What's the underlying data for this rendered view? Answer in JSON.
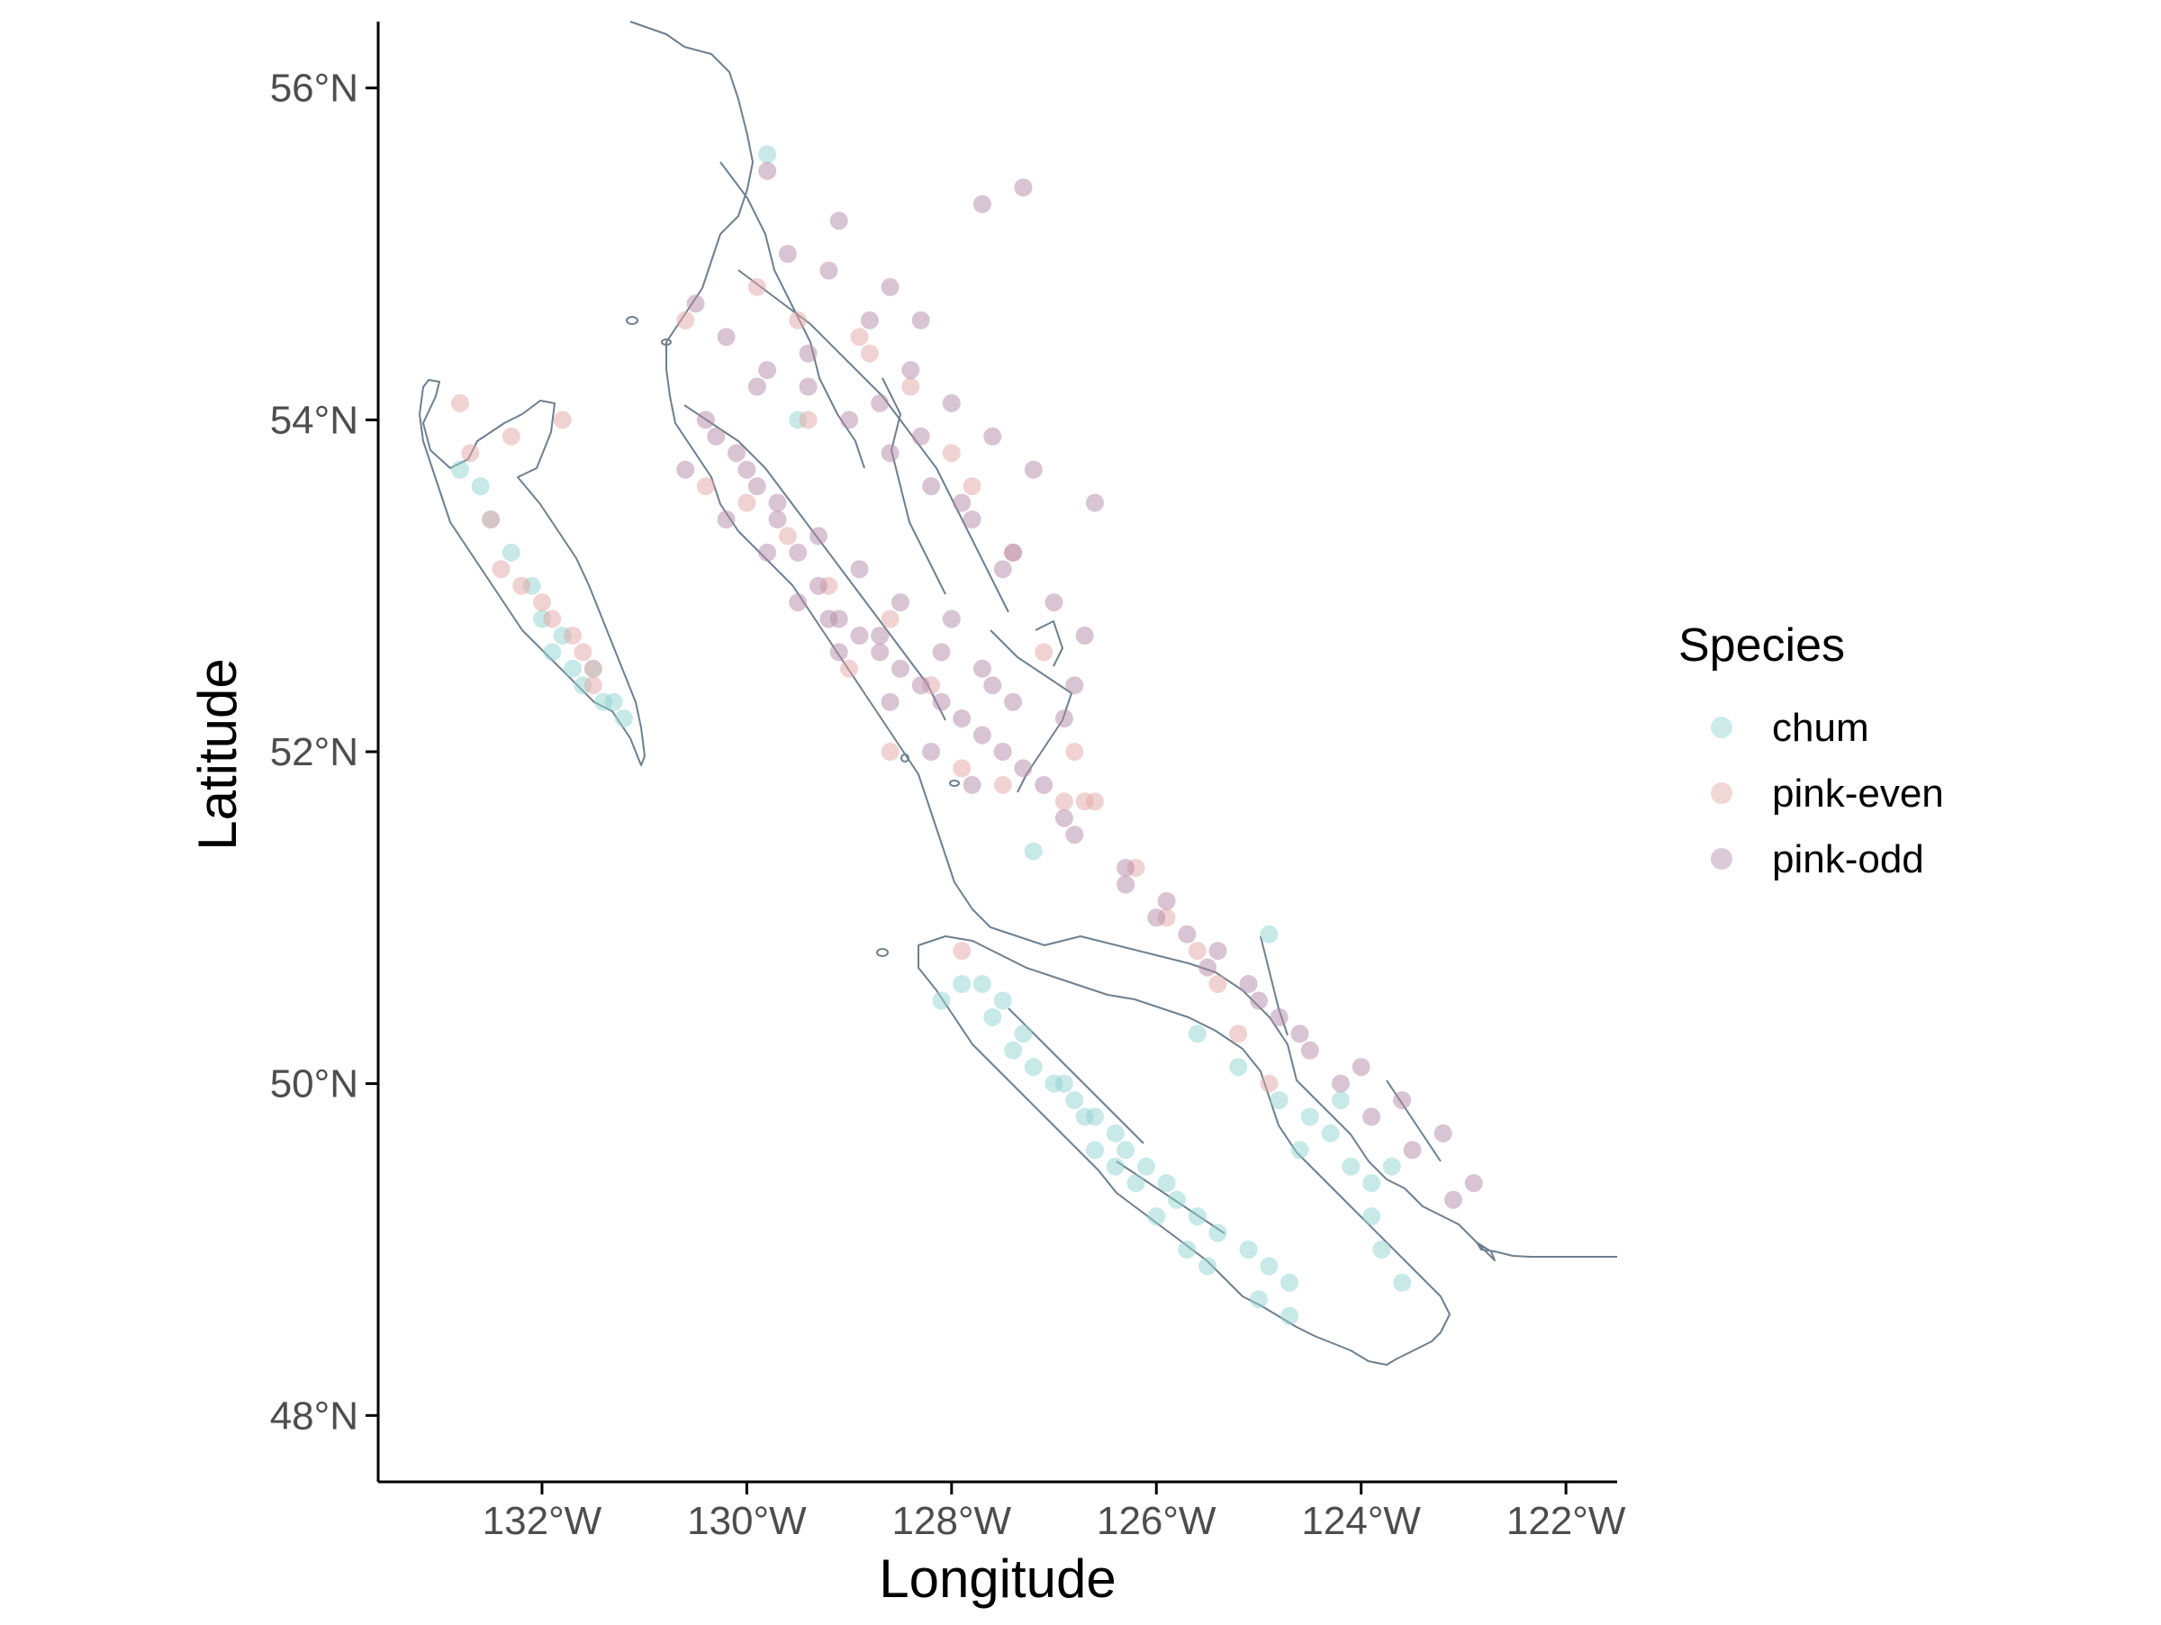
{
  "chart_data": {
    "type": "scatter",
    "title": "",
    "xlabel": "Longitude",
    "ylabel": "Latitude",
    "xlim": [
      -133.6,
      -121.5
    ],
    "ylim": [
      47.6,
      56.4
    ],
    "x_ticks": [
      -132,
      -130,
      -128,
      -126,
      -124,
      -122
    ],
    "x_tick_labels": [
      "132°W",
      "130°W",
      "128°W",
      "126°W",
      "124°W",
      "122°W"
    ],
    "y_ticks": [
      48,
      50,
      52,
      54,
      56
    ],
    "y_tick_labels": [
      "48°N",
      "50°N",
      "52°N",
      "54°N",
      "56°N"
    ],
    "grid": false,
    "legend": {
      "title": "Species",
      "placement": "right",
      "entries": [
        "chum",
        "pink-even",
        "pink-odd"
      ]
    },
    "colors": {
      "chum": "#8fd3d0",
      "pink-even": "#e3a6a6",
      "pink-odd": "#b48aa8",
      "coastline": "#6e7f8f",
      "axis": "#000000"
    },
    "series": [
      {
        "name": "chum",
        "x": [
          -132.8,
          -132.3,
          -132.0,
          -131.8,
          -131.6,
          -131.4,
          -131.2,
          -131.5,
          -129.8,
          -129.5,
          -128.1,
          -127.9,
          -127.6,
          -127.4,
          -127.2,
          -127.0,
          -126.8,
          -126.6,
          -126.4,
          -126.3,
          -126.1,
          -125.9,
          -125.8,
          -125.6,
          -125.4,
          -125.1,
          -124.9,
          -124.7,
          -124.5,
          -124.3,
          -124.1,
          -123.9,
          -123.8,
          -123.6,
          -125.6,
          -125.2,
          -124.8,
          -124.6,
          -123.9,
          -123.7,
          -126.6,
          -126.2,
          -125.0,
          -124.7,
          -127.7,
          -127.5,
          -127.3,
          -126.9,
          -126.7,
          -126.4,
          -126.0,
          -125.7,
          -125.5,
          -124.9,
          -124.2,
          -132.6,
          -132.5,
          -132.1,
          -131.9,
          -131.7,
          -131.3,
          -127.2
        ],
        "y": [
          53.7,
          53.2,
          52.8,
          52.7,
          52.4,
          52.3,
          52.2,
          52.5,
          55.6,
          54.0,
          50.5,
          50.6,
          50.4,
          50.2,
          50.1,
          50.0,
          49.9,
          49.8,
          49.7,
          49.6,
          49.5,
          49.4,
          49.3,
          49.2,
          49.1,
          49.0,
          48.9,
          48.8,
          49.8,
          49.7,
          49.5,
          49.4,
          49.0,
          48.8,
          50.3,
          50.1,
          49.9,
          49.6,
          49.2,
          49.5,
          49.6,
          49.4,
          48.7,
          48.6,
          50.6,
          50.5,
          50.3,
          50.0,
          49.8,
          49.5,
          49.2,
          49.0,
          48.9,
          50.9,
          49.9,
          53.6,
          53.4,
          53.0,
          52.6,
          52.5,
          52.3,
          51.4
        ]
      },
      {
        "name": "pink-even",
        "x": [
          -132.7,
          -132.5,
          -132.4,
          -132.2,
          -132.0,
          -131.9,
          -131.7,
          -131.6,
          -131.5,
          -132.8,
          -132.3,
          -131.8,
          -131.5,
          -129.9,
          -129.5,
          -128.8,
          -128.4,
          -128.0,
          -127.8,
          -127.4,
          -127.1,
          -126.8,
          -126.6,
          -126.2,
          -125.9,
          -125.6,
          -125.4,
          -125.2,
          -124.9,
          -127.9,
          -130.4,
          -130.0,
          -129.6,
          -129.2,
          -128.6,
          -128.2,
          -127.5,
          -126.9,
          -126.7,
          -127.9,
          -128.6,
          -129.0,
          -130.6,
          -129.4,
          -128.9
        ],
        "y": [
          53.8,
          53.4,
          53.1,
          53.0,
          52.9,
          52.8,
          52.7,
          52.6,
          52.5,
          54.1,
          53.9,
          54.0,
          52.4,
          54.8,
          54.6,
          54.4,
          54.2,
          53.8,
          53.6,
          53.2,
          52.6,
          52.0,
          51.7,
          51.3,
          51.0,
          50.8,
          50.6,
          50.3,
          50.0,
          50.8,
          53.6,
          53.5,
          53.3,
          53.0,
          52.8,
          52.4,
          51.8,
          51.7,
          51.7,
          51.9,
          52.0,
          52.5,
          54.6,
          54.0,
          54.5
        ]
      },
      {
        "name": "pink-odd",
        "x": [
          -130.4,
          -130.1,
          -129.9,
          -129.7,
          -129.5,
          -129.3,
          -129.1,
          -128.9,
          -128.7,
          -128.5,
          -128.3,
          -128.1,
          -127.9,
          -127.7,
          -127.5,
          -127.3,
          -127.1,
          -126.9,
          -126.8,
          -130.5,
          -130.2,
          -129.8,
          -129.4,
          -129.0,
          -128.6,
          -128.2,
          -127.8,
          -127.4,
          -127.0,
          -126.7,
          -126.3,
          -126.0,
          -125.7,
          -125.4,
          -125.1,
          -124.8,
          -124.5,
          -124.0,
          -123.6,
          -123.2,
          -122.9,
          -129.6,
          -129.2,
          -128.8,
          -128.4,
          -128.0,
          -127.6,
          -127.2,
          -126.6,
          -129.8,
          -129.1,
          -128.6,
          -128.3,
          -127.7,
          -127.3,
          -130.3,
          -130.0,
          -129.7,
          -129.3,
          -128.9,
          -128.5,
          -128.1,
          -127.6,
          -126.8,
          -126.3,
          -125.9,
          -125.5,
          -125.0,
          -124.6,
          -124.2,
          -123.9,
          -123.5,
          -123.1,
          -129.9,
          -129.4,
          -128.7,
          -128.3,
          -127.9,
          -127.5,
          -130.6,
          -130.2,
          -129.8,
          -129.5,
          -129.1,
          -128.6,
          -128.2,
          -127.8,
          -129.2,
          -128.7,
          -128.0,
          -127.7,
          -127.4,
          -126.9
        ],
        "y": [
          54.0,
          53.8,
          53.6,
          53.4,
          53.2,
          53.0,
          52.8,
          52.7,
          52.6,
          52.5,
          52.4,
          52.3,
          52.2,
          52.1,
          52.0,
          51.9,
          51.8,
          51.6,
          51.5,
          54.7,
          54.5,
          54.3,
          54.2,
          54.0,
          53.8,
          53.6,
          53.4,
          53.2,
          52.9,
          52.7,
          51.2,
          51.0,
          50.9,
          50.8,
          50.6,
          50.4,
          50.2,
          50.1,
          49.9,
          49.7,
          49.4,
          55.0,
          54.9,
          54.6,
          54.3,
          54.1,
          53.9,
          53.7,
          53.5,
          55.5,
          55.2,
          54.8,
          54.6,
          55.3,
          55.4,
          53.9,
          53.7,
          53.5,
          53.3,
          53.1,
          52.9,
          52.6,
          52.4,
          52.4,
          51.3,
          51.1,
          50.7,
          50.5,
          50.3,
          50.0,
          49.8,
          49.6,
          49.3,
          54.2,
          54.4,
          54.1,
          53.9,
          53.5,
          53.1,
          53.7,
          53.4,
          53.2,
          52.9,
          52.6,
          52.3,
          52.0,
          51.8,
          52.8,
          52.7,
          52.8,
          52.5,
          52.3,
          52.2
        ]
      }
    ]
  }
}
